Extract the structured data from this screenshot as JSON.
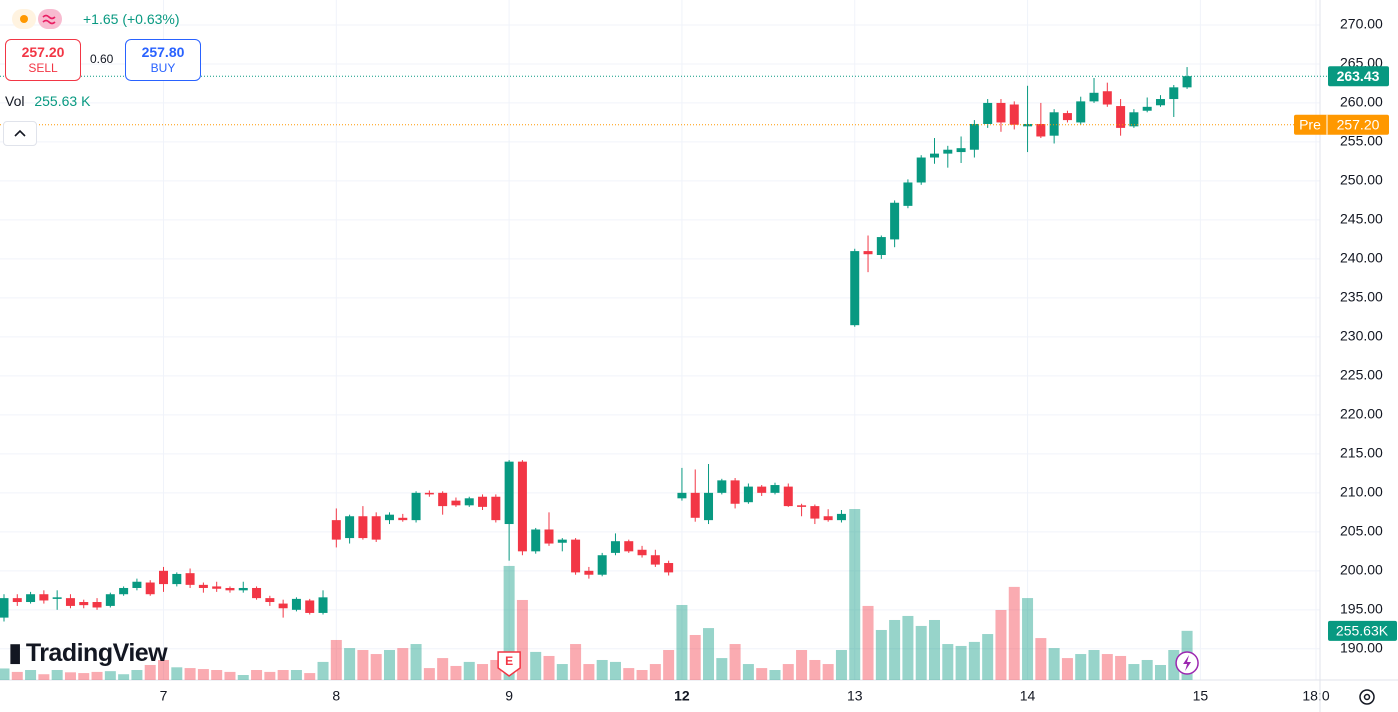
{
  "chart_data": {
    "type": "candlestick",
    "change": "+1.65 (+0.63%)",
    "sell": {
      "price": "257.20",
      "label": "SELL"
    },
    "spread": "0.60",
    "buy": {
      "price": "257.80",
      "label": "BUY"
    },
    "volume_legend": {
      "label": "Vol",
      "value": "255.63 K"
    },
    "last_volume_label": "255.63K",
    "logo": "TradingView",
    "badge": "E",
    "up_color": "#089981",
    "down_color": "#f23645",
    "last_price": {
      "value": 263.43,
      "label": "263.43"
    },
    "pre_market": {
      "name": "Pre",
      "value": 257.2,
      "label": "257.20"
    },
    "ylim": [
      186,
      273.2
    ],
    "yticks": [
      {
        "value": 190,
        "label": "190.00"
      },
      {
        "value": 195,
        "label": "195.00"
      },
      {
        "value": 200,
        "label": "200.00"
      },
      {
        "value": 205,
        "label": "205.00"
      },
      {
        "value": 210,
        "label": "210.00"
      },
      {
        "value": 215,
        "label": "215.00"
      },
      {
        "value": 220,
        "label": "220.00"
      },
      {
        "value": 225,
        "label": "225.00"
      },
      {
        "value": 230,
        "label": "230.00"
      },
      {
        "value": 235,
        "label": "235.00"
      },
      {
        "value": 240,
        "label": "240.00"
      },
      {
        "value": 245,
        "label": "245.00"
      },
      {
        "value": 250,
        "label": "250.00"
      },
      {
        "value": 255,
        "label": "255.00"
      },
      {
        "value": 260,
        "label": "260.00"
      },
      {
        "value": 265,
        "label": "265.00"
      },
      {
        "value": 270,
        "label": "270.00"
      }
    ],
    "xlim": [
      -0.3,
      99.0
    ],
    "xticks": [
      {
        "value": 12,
        "label": "7"
      },
      {
        "value": 25,
        "label": "8"
      },
      {
        "value": 38,
        "label": "9"
      },
      {
        "value": 51,
        "label": "12"
      },
      {
        "value": 64,
        "label": "13"
      },
      {
        "value": 77,
        "label": "14"
      },
      {
        "value": 90,
        "label": "15"
      },
      {
        "value": 98.7,
        "label": "18:0"
      }
    ],
    "open": [
      194,
      196.5,
      196,
      197,
      196.4,
      196.5,
      196,
      196,
      195.5,
      197,
      197.8,
      198.5,
      200,
      198.3,
      199.7,
      198.2,
      198,
      197.8,
      197.5,
      197.8,
      196.5,
      195.8,
      195,
      196.2,
      194.6,
      206.5,
      204.2,
      207,
      207,
      206.5,
      206.8,
      206.5,
      210,
      210,
      209,
      208.4,
      209.5,
      209.5,
      206,
      214,
      202.5,
      205.3,
      203.6,
      204,
      200,
      199.5,
      202.3,
      203.8,
      202.7,
      202,
      201,
      209.3,
      210,
      206.5,
      210,
      211.6,
      208.8,
      210.8,
      210,
      210.8,
      208.4,
      208.3,
      207,
      206.5,
      231.5,
      241,
      240.5,
      242.5,
      246.8,
      249.8,
      253,
      253.5,
      253.7,
      254,
      257.3,
      260,
      259.8,
      257,
      257.3,
      255.8,
      258.7,
      257.5,
      260.2,
      261.5,
      259.6,
      257,
      259,
      259.7,
      260.5,
      262
    ],
    "high": [
      197,
      197,
      197.3,
      197.5,
      197.5,
      197,
      196.3,
      196.5,
      197.2,
      198,
      199,
      198.8,
      200.5,
      199.8,
      200.3,
      198.5,
      198.6,
      198,
      198.6,
      198,
      196.8,
      196.3,
      196.6,
      196.4,
      197.5,
      208,
      207.2,
      208.3,
      207.5,
      207.5,
      207.3,
      210.2,
      210.3,
      210.2,
      209.4,
      209.5,
      209.8,
      209.8,
      214.2,
      214.2,
      205.5,
      207.5,
      204.2,
      204.2,
      200.5,
      202.3,
      204.8,
      204,
      203.2,
      202.7,
      201.3,
      213.2,
      213,
      213.7,
      211.8,
      211.9,
      211.2,
      211,
      211.3,
      211.2,
      208.6,
      208.5,
      207.9,
      207.8,
      241.3,
      243,
      243,
      247.5,
      250.2,
      253.3,
      255.5,
      254.5,
      255.7,
      257.8,
      260.5,
      260.5,
      260.2,
      262.2,
      260,
      259.2,
      259,
      260.8,
      263.2,
      262.6,
      260.5,
      259.2,
      260.7,
      261,
      262.3,
      264.6
    ],
    "low": [
      193.5,
      195.5,
      195.8,
      195.8,
      195,
      195.2,
      195.2,
      195,
      195.3,
      196.8,
      197.5,
      196.8,
      197.3,
      198,
      197.8,
      197.2,
      197.3,
      197.2,
      197.2,
      196.3,
      195.5,
      194,
      194.8,
      194.4,
      194.4,
      203,
      203.5,
      204,
      203.7,
      206,
      206.3,
      206.2,
      209.5,
      207.2,
      208.2,
      208.2,
      207.8,
      206.2,
      201.3,
      202,
      202.2,
      203.2,
      202.5,
      199.5,
      199,
      199.3,
      202,
      202.3,
      201.7,
      200.5,
      199.4,
      209,
      206.3,
      206,
      209.8,
      208,
      208.6,
      209.6,
      209.8,
      208.2,
      207,
      206,
      206.3,
      206.2,
      231.3,
      238.3,
      240,
      241.5,
      246.5,
      249.5,
      252.2,
      251.7,
      252.3,
      253,
      256.8,
      256.3,
      256.6,
      253.7,
      255.5,
      254.8,
      257.5,
      257.2,
      260,
      259.5,
      255.8,
      256.8,
      258.8,
      259.5,
      258.2,
      261.8
    ],
    "close": [
      196.5,
      196,
      197,
      196.2,
      196.6,
      195.5,
      195.6,
      195.3,
      197,
      197.8,
      198.6,
      197,
      198.3,
      199.6,
      198.2,
      197.8,
      197.7,
      197.5,
      197.8,
      196.5,
      196,
      195.2,
      196.4,
      194.6,
      196.6,
      204,
      207,
      204.2,
      204,
      207.2,
      206.5,
      210,
      209.8,
      208.3,
      208.4,
      209.3,
      208.2,
      206.5,
      214,
      202.5,
      205.3,
      203.5,
      204,
      199.8,
      199.5,
      202,
      203.8,
      202.5,
      202,
      200.8,
      199.8,
      210,
      206.8,
      210,
      211.6,
      208.6,
      210.8,
      210,
      211,
      208.3,
      208.2,
      206.7,
      206.5,
      207.3,
      241,
      240.6,
      242.8,
      247.2,
      249.8,
      253,
      253.5,
      254,
      254.2,
      257.3,
      260,
      257.5,
      257.2,
      257.3,
      255.7,
      258.8,
      257.8,
      260.2,
      261.3,
      259.8,
      256.8,
      258.8,
      259.5,
      260.5,
      262,
      263.43
    ],
    "volume": [
      60,
      42,
      52,
      30,
      52,
      40,
      36,
      42,
      46,
      30,
      52,
      78,
      104,
      66,
      62,
      57,
      52,
      42,
      26,
      52,
      42,
      52,
      52,
      36,
      94,
      208,
      166,
      156,
      135,
      156,
      166,
      187,
      62,
      114,
      73,
      94,
      83,
      104,
      593,
      416,
      146,
      125,
      83,
      187,
      83,
      104,
      94,
      62,
      52,
      83,
      156,
      390,
      234,
      270,
      114,
      187,
      83,
      62,
      52,
      83,
      156,
      104,
      83,
      156,
      889,
      385,
      260,
      312,
      333,
      281,
      312,
      187,
      177,
      198,
      239,
      364,
      484,
      426,
      218,
      166,
      114,
      135,
      156,
      135,
      125,
      83,
      104,
      78,
      156,
      255.63
    ]
  }
}
